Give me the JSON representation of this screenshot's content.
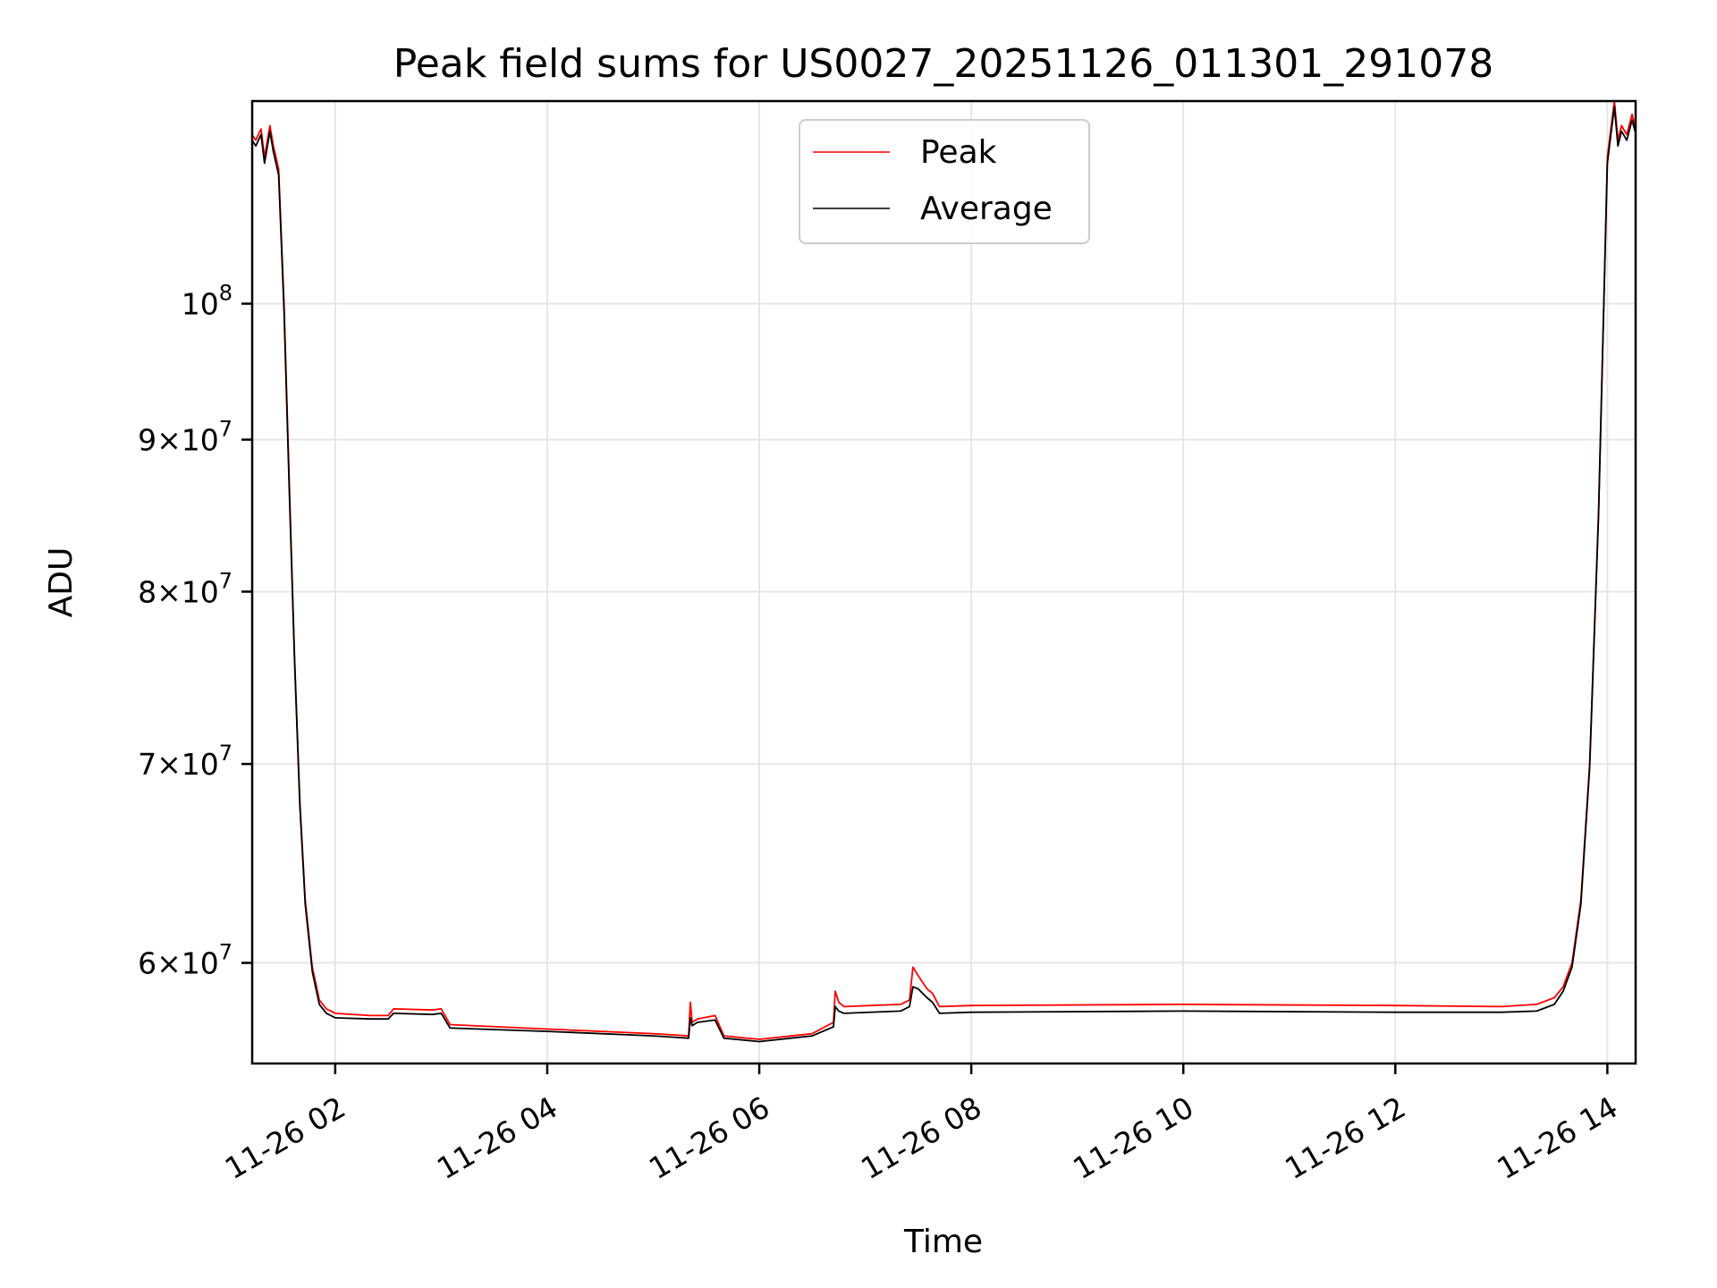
{
  "chart_data": {
    "type": "line",
    "title": "Peak field sums for US0027_20251126_011301_291078",
    "xlabel": "Time",
    "ylabel": "ADU",
    "yscale": "log",
    "ylim": [
      55500000,
      117000000
    ],
    "xlim": [
      "2025-11-26 01:13",
      "2025-11-26 14:16"
    ],
    "grid": true,
    "legend_placement": "upper-center",
    "x_ticks": [
      {
        "value": "2025-11-26 02:00",
        "label": "11-26 02"
      },
      {
        "value": "2025-11-26 04:00",
        "label": "11-26 04"
      },
      {
        "value": "2025-11-26 06:00",
        "label": "11-26 06"
      },
      {
        "value": "2025-11-26 08:00",
        "label": "11-26 08"
      },
      {
        "value": "2025-11-26 10:00",
        "label": "11-26 10"
      },
      {
        "value": "2025-11-26 12:00",
        "label": "11-26 12"
      },
      {
        "value": "2025-11-26 14:00",
        "label": "11-26 14"
      }
    ],
    "y_ticks": [
      {
        "value": 60000000,
        "mant": "6",
        "exp": "7"
      },
      {
        "value": 70000000,
        "mant": "7",
        "exp": "7"
      },
      {
        "value": 80000000,
        "mant": "8",
        "exp": "7"
      },
      {
        "value": 90000000,
        "mant": "9",
        "exp": "7"
      },
      {
        "value": 100000000,
        "mant": "",
        "exp": "8"
      }
    ],
    "series": [
      {
        "name": "Peak",
        "color": "#ff0000",
        "x": [
          "2025-11-26 01:13",
          "2025-11-26 01:15",
          "2025-11-26 01:18",
          "2025-11-26 01:20",
          "2025-11-26 01:23",
          "2025-11-26 01:25",
          "2025-11-26 01:28",
          "2025-11-26 01:31",
          "2025-11-26 01:34",
          "2025-11-26 01:37",
          "2025-11-26 01:40",
          "2025-11-26 01:43",
          "2025-11-26 01:47",
          "2025-11-26 01:51",
          "2025-11-26 01:55",
          "2025-11-26 02:00",
          "2025-11-26 02:20",
          "2025-11-26 02:30",
          "2025-11-26 02:33",
          "2025-11-26 02:55",
          "2025-11-26 03:00",
          "2025-11-26 03:05",
          "2025-11-26 04:00",
          "2025-11-26 05:00",
          "2025-11-26 05:20",
          "2025-11-26 05:21",
          "2025-11-26 05:22",
          "2025-11-26 05:25",
          "2025-11-26 05:35",
          "2025-11-26 05:40",
          "2025-11-26 06:00",
          "2025-11-26 06:30",
          "2025-11-26 06:42",
          "2025-11-26 06:43",
          "2025-11-26 06:45",
          "2025-11-26 06:48",
          "2025-11-26 07:20",
          "2025-11-26 07:25",
          "2025-11-26 07:27",
          "2025-11-26 07:30",
          "2025-11-26 07:35",
          "2025-11-26 07:38",
          "2025-11-26 07:42",
          "2025-11-26 08:00",
          "2025-11-26 10:00",
          "2025-11-26 12:00",
          "2025-11-26 13:00",
          "2025-11-26 13:20",
          "2025-11-26 13:30",
          "2025-11-26 13:35",
          "2025-11-26 13:40",
          "2025-11-26 13:45",
          "2025-11-26 13:50",
          "2025-11-26 13:55",
          "2025-11-26 13:58",
          "2025-11-26 14:00",
          "2025-11-26 14:02",
          "2025-11-26 14:04",
          "2025-11-26 14:06",
          "2025-11-26 14:08",
          "2025-11-26 14:11",
          "2025-11-26 14:14",
          "2025-11-26 14:16"
        ],
        "y": [
          114000000,
          113500000,
          114500000,
          112000000,
          114800000,
          113000000,
          111000000,
          100000000,
          87000000,
          76000000,
          68000000,
          63000000,
          59800000,
          58300000,
          57900000,
          57700000,
          57600000,
          57600000,
          57900000,
          57850000,
          57900000,
          57200000,
          57000000,
          56800000,
          56700000,
          58200000,
          57300000,
          57450000,
          57600000,
          56700000,
          56550000,
          56800000,
          57300000,
          58700000,
          58200000,
          58000000,
          58100000,
          58300000,
          59800000,
          59400000,
          58800000,
          58600000,
          58000000,
          58050000,
          58100000,
          58050000,
          58000000,
          58100000,
          58400000,
          58900000,
          60000000,
          63000000,
          70000000,
          85000000,
          100000000,
          112000000,
          114500000,
          117000000,
          113500000,
          114800000,
          114000000,
          115800000,
          114600000
        ]
      },
      {
        "name": "Average",
        "color": "#000000",
        "x": [
          "2025-11-26 01:13",
          "2025-11-26 01:15",
          "2025-11-26 01:18",
          "2025-11-26 01:20",
          "2025-11-26 01:23",
          "2025-11-26 01:25",
          "2025-11-26 01:28",
          "2025-11-26 01:31",
          "2025-11-26 01:34",
          "2025-11-26 01:37",
          "2025-11-26 01:40",
          "2025-11-26 01:43",
          "2025-11-26 01:47",
          "2025-11-26 01:51",
          "2025-11-26 01:55",
          "2025-11-26 02:00",
          "2025-11-26 02:20",
          "2025-11-26 02:30",
          "2025-11-26 02:33",
          "2025-11-26 02:55",
          "2025-11-26 03:00",
          "2025-11-26 03:05",
          "2025-11-26 04:00",
          "2025-11-26 05:00",
          "2025-11-26 05:20",
          "2025-11-26 05:21",
          "2025-11-26 05:22",
          "2025-11-26 05:25",
          "2025-11-26 05:35",
          "2025-11-26 05:40",
          "2025-11-26 06:00",
          "2025-11-26 06:30",
          "2025-11-26 06:42",
          "2025-11-26 06:43",
          "2025-11-26 06:45",
          "2025-11-26 06:48",
          "2025-11-26 07:20",
          "2025-11-26 07:25",
          "2025-11-26 07:27",
          "2025-11-26 07:30",
          "2025-11-26 07:35",
          "2025-11-26 07:38",
          "2025-11-26 07:42",
          "2025-11-26 08:00",
          "2025-11-26 10:00",
          "2025-11-26 12:00",
          "2025-11-26 13:00",
          "2025-11-26 13:20",
          "2025-11-26 13:30",
          "2025-11-26 13:35",
          "2025-11-26 13:40",
          "2025-11-26 13:45",
          "2025-11-26 13:50",
          "2025-11-26 13:55",
          "2025-11-26 13:58",
          "2025-11-26 14:00",
          "2025-11-26 14:02",
          "2025-11-26 14:04",
          "2025-11-26 14:06",
          "2025-11-26 14:08",
          "2025-11-26 14:11",
          "2025-11-26 14:14",
          "2025-11-26 14:16"
        ],
        "y": [
          113500000,
          113000000,
          114000000,
          111500000,
          114300000,
          112500000,
          110500000,
          99500000,
          86500000,
          75800000,
          67800000,
          62800000,
          59600000,
          58100000,
          57700000,
          57500000,
          57450000,
          57450000,
          57700000,
          57650000,
          57700000,
          57050000,
          56900000,
          56700000,
          56600000,
          57500000,
          57150000,
          57300000,
          57400000,
          56600000,
          56450000,
          56700000,
          57100000,
          58000000,
          57800000,
          57700000,
          57800000,
          58000000,
          58900000,
          58800000,
          58400000,
          58200000,
          57700000,
          57750000,
          57800000,
          57750000,
          57750000,
          57800000,
          58100000,
          58700000,
          59800000,
          62800000,
          69800000,
          84800000,
          99800000,
          111500000,
          114000000,
          116500000,
          113000000,
          114300000,
          113500000,
          115300000,
          114100000
        ]
      }
    ]
  }
}
